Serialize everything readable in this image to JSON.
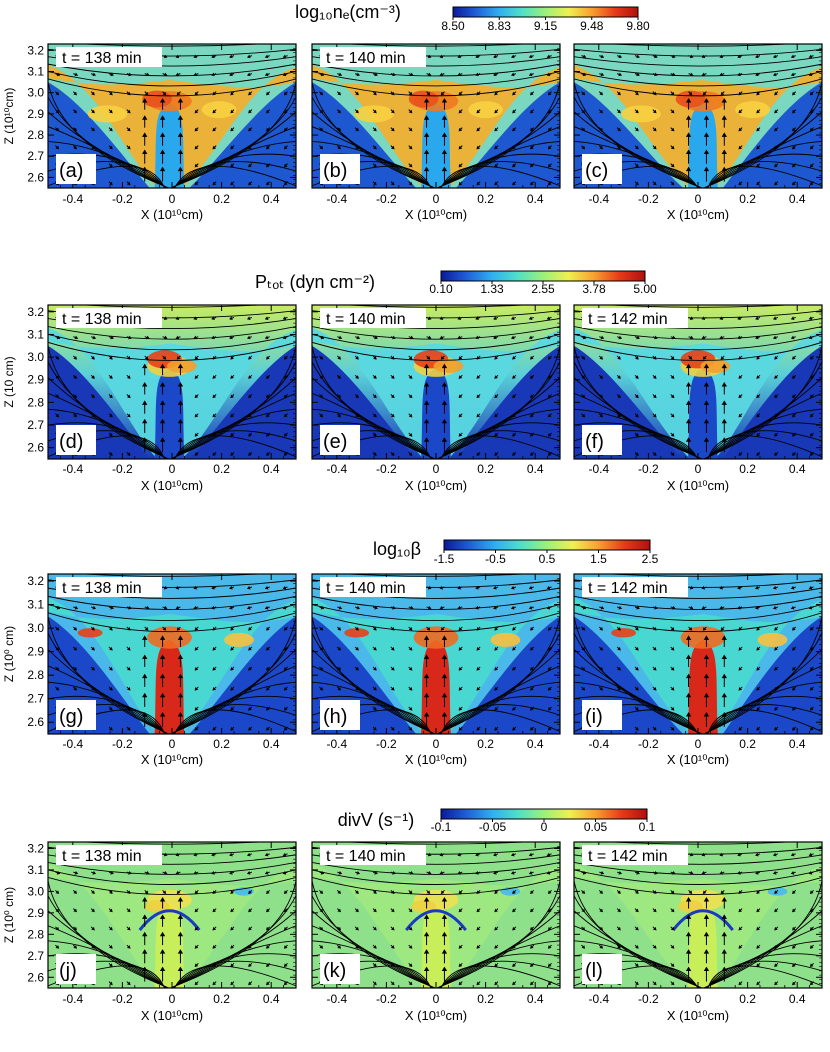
{
  "colormap": [
    "#0a1a9a",
    "#1f5fd8",
    "#2fb0f0",
    "#4fe0c8",
    "#9cf07a",
    "#f0f050",
    "#f8a030",
    "#e83a18",
    "#b01010"
  ],
  "rows": [
    {
      "title": "log₁₀nₑ(cm⁻³)",
      "colorbar_ticks": [
        "8.50",
        "8.83",
        "9.15",
        "9.48",
        "9.80"
      ],
      "ylabel": "Z (10¹⁰cm)",
      "xlabel": "X (10¹⁰cm)",
      "panels": [
        {
          "time": "t = 138 min",
          "tag": "(a)"
        },
        {
          "time": "t = 140 min",
          "tag": "(b)"
        },
        {
          "time": "",
          "tag": "(c)"
        }
      ]
    },
    {
      "title": "Pₜₒₜ (dyn cm⁻²)",
      "colorbar_ticks": [
        "0.10",
        "1.33",
        "2.55",
        "3.78",
        "5.00"
      ],
      "ylabel": "Z (10   cm)",
      "xlabel": "X (10¹⁰cm)",
      "panels": [
        {
          "time": "t = 138 min",
          "tag": "(d)"
        },
        {
          "time": "t = 140 min",
          "tag": "(e)"
        },
        {
          "time": "t = 142 min",
          "tag": "(f)"
        }
      ]
    },
    {
      "title": "log₁₀β",
      "colorbar_ticks": [
        "-1.5",
        "-0.5",
        "0.5",
        "1.5",
        "2.5"
      ],
      "ylabel": "Z (10⁰ cm)",
      "xlabel": "X (10¹⁰cm)",
      "panels": [
        {
          "time": "t = 138 min",
          "tag": "(g)"
        },
        {
          "time": "t = 140 min",
          "tag": "(h)"
        },
        {
          "time": "t = 142 min",
          "tag": "(i)"
        }
      ]
    },
    {
      "title": "divV (s⁻¹)",
      "colorbar_ticks": [
        "-0.1",
        "-0.05",
        "0",
        "0.05",
        "0.1"
      ],
      "ylabel": "Z (10⁰ cm)",
      "xlabel": "X (10¹⁰cm)",
      "panels": [
        {
          "time": "t = 138 min",
          "tag": "(j)"
        },
        {
          "time": "t = 140 min",
          "tag": "(k)"
        },
        {
          "time": "t = 142 min",
          "tag": "(l)"
        }
      ]
    }
  ],
  "chart_data": {
    "type": "heatmap",
    "x_ticks": [
      "-0.4",
      "-0.2",
      "0",
      "0.2",
      "0.4"
    ],
    "y_ticks": [
      "3.2",
      "3.1",
      "3.0",
      "2.9",
      "2.8",
      "2.7",
      "2.6"
    ],
    "xlim": [
      -0.5,
      0.5
    ],
    "ylim": [
      2.55,
      3.23
    ],
    "grid": false
  }
}
